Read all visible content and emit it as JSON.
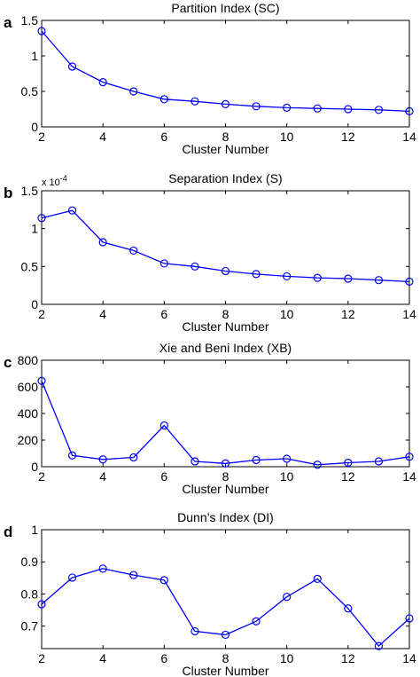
{
  "chart_data": [
    {
      "panel": "a",
      "type": "line",
      "title": "Partition Index (SC)",
      "xlabel": "Cluster Number",
      "ylabel": "",
      "xlim": [
        2,
        14
      ],
      "ylim": [
        0,
        1.5
      ],
      "xticks": [
        "2",
        "4",
        "6",
        "8",
        "10",
        "12",
        "14"
      ],
      "yticks": [
        "0",
        "0.5",
        "1",
        "1.5"
      ],
      "y_multiplier": "",
      "grid": false,
      "series": [
        {
          "color": "#0000ff",
          "marker": "circle",
          "x": [
            2,
            3,
            4,
            5,
            6,
            7,
            8,
            9,
            10,
            11,
            12,
            13,
            14
          ],
          "y": [
            1.35,
            0.85,
            0.63,
            0.5,
            0.39,
            0.36,
            0.32,
            0.29,
            0.27,
            0.26,
            0.25,
            0.24,
            0.22
          ]
        }
      ]
    },
    {
      "panel": "b",
      "type": "line",
      "title": "Separation Index (S)",
      "xlabel": "Cluster Number",
      "ylabel": "",
      "xlim": [
        2,
        14
      ],
      "ylim": [
        0,
        1.5
      ],
      "xticks": [
        "2",
        "4",
        "6",
        "8",
        "10",
        "12",
        "14"
      ],
      "yticks": [
        "0",
        "0.5",
        "1",
        "1.5"
      ],
      "y_multiplier": "x 10",
      "y_multiplier_exp": "-4",
      "grid": false,
      "series": [
        {
          "color": "#0000ff",
          "marker": "circle",
          "x": [
            2,
            3,
            4,
            5,
            6,
            7,
            8,
            9,
            10,
            11,
            12,
            13,
            14
          ],
          "y": [
            1.14,
            1.24,
            0.82,
            0.71,
            0.54,
            0.5,
            0.44,
            0.4,
            0.37,
            0.35,
            0.34,
            0.32,
            0.3
          ]
        }
      ]
    },
    {
      "panel": "c",
      "type": "line",
      "title": "Xie and Beni Index (XB)",
      "xlabel": "Cluster Number",
      "ylabel": "",
      "xlim": [
        2,
        14
      ],
      "ylim": [
        0,
        800
      ],
      "xticks": [
        "2",
        "4",
        "6",
        "8",
        "10",
        "12",
        "14"
      ],
      "yticks": [
        "0",
        "200",
        "400",
        "600",
        "800"
      ],
      "y_multiplier": "",
      "grid": false,
      "series": [
        {
          "color": "#0000ff",
          "marker": "circle",
          "x": [
            2,
            3,
            4,
            5,
            6,
            7,
            8,
            9,
            10,
            11,
            12,
            13,
            14
          ],
          "y": [
            645,
            85,
            55,
            70,
            310,
            40,
            25,
            50,
            60,
            15,
            30,
            40,
            75
          ]
        }
      ]
    },
    {
      "panel": "d",
      "type": "line",
      "title": "Dunn’s Index (DI)",
      "xlabel": "Cluster Number",
      "ylabel": "",
      "xlim": [
        2,
        14
      ],
      "ylim": [
        0.63,
        1.0
      ],
      "xticks": [
        "2",
        "4",
        "6",
        "8",
        "10",
        "12",
        "14"
      ],
      "yticks": [
        "0.7",
        "0.8",
        "0.9",
        "1"
      ],
      "y_multiplier": "",
      "grid": false,
      "series": [
        {
          "color": "#0000ff",
          "marker": "circle",
          "x": [
            2,
            3,
            4,
            5,
            6,
            7,
            8,
            9,
            10,
            11,
            12,
            13,
            14
          ],
          "y": [
            0.768,
            0.851,
            0.879,
            0.859,
            0.843,
            0.684,
            0.673,
            0.715,
            0.791,
            0.847,
            0.755,
            0.638,
            0.724
          ]
        }
      ]
    }
  ]
}
